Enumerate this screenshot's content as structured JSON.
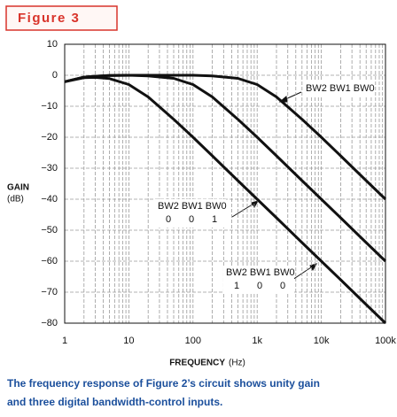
{
  "figure_label": "Figure 3",
  "caption": [
    "The frequency response of Figure 2’s circuit shows unity gain",
    "and three digital bandwidth-control inputs."
  ],
  "chart_data": {
    "type": "line",
    "y_label": "GAIN",
    "y_unit": "(dB)",
    "x_label": "FREQUENCY",
    "x_unit": "(Hz)",
    "log_x": true,
    "grid": true,
    "x": [
      1,
      2,
      3,
      5,
      10,
      20,
      50,
      100,
      200,
      500,
      1000,
      2000,
      5000,
      10000,
      20000,
      50000,
      100000
    ],
    "series": [
      {
        "color": "#111111",
        "values": [
          -2.1,
          -0.8,
          -0.7,
          -1.1,
          -3.0,
          -7.0,
          -14.2,
          -20,
          -26,
          -34,
          -40,
          -46,
          -54,
          -60,
          -66,
          -74,
          -80
        ]
      },
      {
        "color": "#111111",
        "values": [
          -2.1,
          -0.6,
          -0.3,
          -0.1,
          0,
          -0.2,
          -1.0,
          -3.0,
          -7.0,
          -14.2,
          -20,
          -26,
          -34,
          -40,
          -46,
          -54,
          -60
        ]
      },
      {
        "color": "#111111",
        "values": [
          -2.1,
          -0.6,
          -0.3,
          -0.1,
          0,
          0,
          0,
          0,
          -0.2,
          -1.0,
          -3.0,
          -7.0,
          -14.2,
          -20,
          -26,
          -34,
          -40
        ]
      }
    ],
    "xlim": [
      1,
      100000
    ],
    "xticks": [
      1,
      10,
      100,
      {
        "value": 1000,
        "label": "1k"
      },
      {
        "value": 10000,
        "label": "10k"
      },
      {
        "value": 100000,
        "label": "100k"
      }
    ],
    "ylim": [
      -80,
      10
    ],
    "yticks": [
      10,
      0,
      {
        "value": -10,
        "label": "−10"
      },
      {
        "value": -20,
        "label": "−20"
      },
      {
        "value": -30,
        "label": "−30"
      },
      {
        "value": -40,
        "label": "−40"
      },
      {
        "value": -50,
        "label": "−50"
      },
      {
        "value": -60,
        "label": "−60"
      },
      {
        "value": -70,
        "label": "−70"
      },
      {
        "value": -80,
        "label": "−80"
      }
    ],
    "annotations": [
      {
        "text": "BW2 BW1 BW0"
      },
      {
        "text": "BW2 BW1 BW0",
        "bits": [
          "0",
          "0",
          "1"
        ]
      },
      {
        "text": "BW2 BW1 BW0",
        "bits": [
          "1",
          "0",
          "0"
        ]
      }
    ]
  }
}
